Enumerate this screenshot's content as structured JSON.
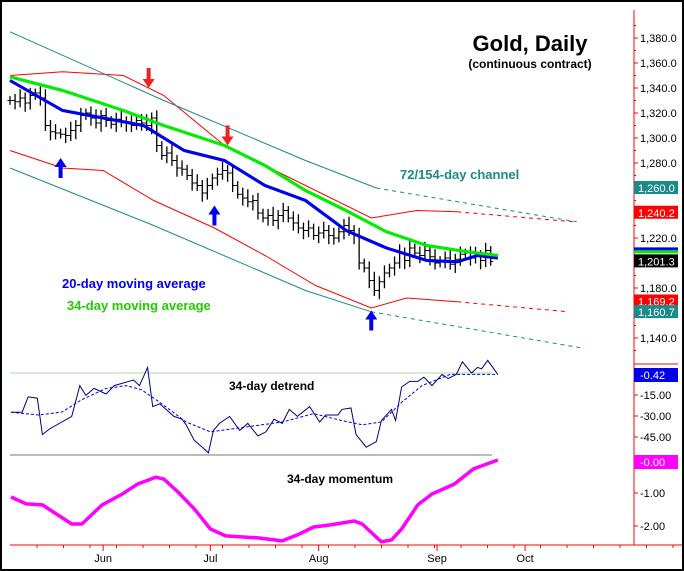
{
  "chart_data": [
    {
      "type": "bar",
      "subtype": "ohlc",
      "title": "Gold, Daily",
      "subtitle": "(continuous contract)",
      "x_unit": "trading day index",
      "ylim": [
        1120,
        1390
      ],
      "y_ticks": [
        "1,380.0",
        "1,360.0",
        "1,340.0",
        "1,320.0",
        "1,300.0",
        "1,280.0",
        "1,220.0",
        "1,180.0",
        "1,140.0"
      ],
      "y_tick_values": [
        1380,
        1360,
        1340,
        1320,
        1300,
        1280,
        1220,
        1180,
        1140
      ],
      "x_tick_labels": [
        "Jun",
        "Jul",
        "Aug",
        "Sep",
        "Oct"
      ],
      "x_tick_positions": [
        18.4,
        39.6,
        61,
        84.4,
        101.8
      ],
      "closes": [
        1330,
        1329,
        1332,
        1328,
        1334,
        1336,
        1332,
        1310,
        1305,
        1304,
        1303,
        1302,
        1306,
        1310,
        1318,
        1320,
        1316,
        1312,
        1318,
        1314,
        1311,
        1315,
        1313,
        1312,
        1310,
        1314,
        1312,
        1310,
        1316,
        1294,
        1286,
        1288,
        1282,
        1276,
        1275,
        1270,
        1264,
        1262,
        1256,
        1262,
        1268,
        1271,
        1274,
        1272,
        1262,
        1255,
        1252,
        1249,
        1250,
        1240,
        1236,
        1238,
        1234,
        1238,
        1242,
        1236,
        1232,
        1228,
        1226,
        1228,
        1222,
        1224,
        1226,
        1222,
        1220,
        1225,
        1230,
        1226,
        1222,
        1200,
        1196,
        1186,
        1178,
        1185,
        1192,
        1196,
        1200,
        1208,
        1202,
        1212,
        1208,
        1206,
        1210,
        1205,
        1200,
        1202,
        1204,
        1199,
        1203,
        1207,
        1208,
        1204,
        1206,
        1202,
        1210,
        1201.3
      ],
      "bar_half_range": 7,
      "series": [
        {
          "name": "20-day moving average",
          "color": "#0000ee",
          "points": [
            [
              0,
              1346
            ],
            [
              10.4,
              1322
            ],
            [
              18.4,
              1316
            ],
            [
              26.4,
              1310
            ],
            [
              34.4,
              1290
            ],
            [
              42.4,
              1282
            ],
            [
              50.4,
              1262
            ],
            [
              58.4,
              1250
            ],
            [
              66.4,
              1226
            ],
            [
              74.4,
              1212
            ],
            [
              82.4,
              1202
            ],
            [
              88.4,
              1201
            ],
            [
              92.4,
              1206
            ],
            [
              96.4,
              1204
            ]
          ]
        },
        {
          "name": "34-day moving average",
          "color": "#00ee00",
          "points": [
            [
              0,
              1349
            ],
            [
              10.4,
              1338
            ],
            [
              22.4,
              1322
            ],
            [
              30.4,
              1310
            ],
            [
              42.4,
              1294
            ],
            [
              50.4,
              1278
            ],
            [
              58.4,
              1258
            ],
            [
              66.4,
              1242
            ],
            [
              74.4,
              1225
            ],
            [
              82.4,
              1214
            ],
            [
              90.4,
              1209
            ],
            [
              96.4,
              1206
            ]
          ]
        },
        {
          "name": "72-day channel upper",
          "color": "#ff0000",
          "points": [
            [
              0,
              1350
            ],
            [
              10.4,
              1353
            ],
            [
              22.4,
              1350
            ],
            [
              30.4,
              1334
            ],
            [
              42.4,
              1294
            ],
            [
              58.4,
              1262
            ],
            [
              71.4,
              1236
            ],
            [
              80.4,
              1242
            ],
            [
              88.4,
              1241
            ]
          ],
          "projection": [
            [
              88.4,
              1241
            ],
            [
              111.4,
              1233
            ]
          ]
        },
        {
          "name": "72-day channel lower",
          "color": "#ff0000",
          "points": [
            [
              0,
              1290
            ],
            [
              10.4,
              1276
            ],
            [
              18.4,
              1274
            ],
            [
              28.4,
              1250
            ],
            [
              40.4,
              1228
            ],
            [
              50.4,
              1206
            ],
            [
              60.4,
              1182
            ],
            [
              71.4,
              1164
            ],
            [
              78.4,
              1172
            ],
            [
              88.4,
              1169
            ]
          ],
          "projection": [
            [
              88.4,
              1169
            ],
            [
              110.4,
              1161
            ]
          ]
        },
        {
          "name": "154-day channel upper",
          "color": "#1a8a8a",
          "points": [
            [
              0,
              1385
            ],
            [
              30.4,
              1330
            ],
            [
              58.4,
              1282
            ],
            [
              72.4,
              1260
            ]
          ],
          "projection": [
            [
              72.4,
              1260
            ],
            [
              112,
              1233
            ]
          ]
        },
        {
          "name": "154-day channel lower",
          "color": "#1a8a8a",
          "points": [
            [
              0,
              1276
            ],
            [
              28.4,
              1230
            ],
            [
              58.4,
              1178
            ],
            [
              71.4,
              1161
            ]
          ],
          "projection": [
            [
              71.4,
              1161
            ],
            [
              113,
              1132
            ]
          ]
        }
      ],
      "annotations": {
        "ma20_label": "20-day moving average",
        "ma34_label": "34-day moving average",
        "channel_label": "72/154-day channel",
        "down_arrows": [
          [
            27.4,
            1340
          ],
          [
            43,
            1294
          ]
        ],
        "up_arrows": [
          [
            10,
            1284
          ],
          [
            40.4,
            1246
          ],
          [
            71.4,
            1162
          ]
        ]
      },
      "value_boxes": [
        {
          "text": "1,260.0",
          "value": 1260,
          "color": "#1a8a8a"
        },
        {
          "text": "1,240.2",
          "value": 1240.2,
          "color": "#ff0000"
        },
        {
          "text": "1,201.3",
          "value": 1201.3,
          "color": "#000000"
        },
        {
          "text": "1,169.2",
          "value": 1169.2,
          "color": "#ff0000"
        },
        {
          "text": "1,160.7",
          "value": 1160.7,
          "color": "#1a8a8a"
        }
      ]
    },
    {
      "type": "line",
      "title": "34-day detrend",
      "ylim": [
        -58,
        10
      ],
      "y_ticks": [
        "-15.00",
        "-30.00",
        "-45.00"
      ],
      "y_tick_values": [
        -15,
        -30,
        -45
      ],
      "current_label": "-0.42",
      "current_color": "#0000ee",
      "series": [
        {
          "name": "detrend",
          "color": "#000080",
          "points": [
            [
              0.2,
              -28
            ],
            [
              2.4,
              -28
            ],
            [
              3.6,
              -17
            ],
            [
              5.4,
              -18
            ],
            [
              6.4,
              -44
            ],
            [
              7.8,
              -40
            ],
            [
              12.2,
              -31
            ],
            [
              13.8,
              -9
            ],
            [
              15,
              -16
            ],
            [
              16.6,
              -11
            ],
            [
              19,
              -15
            ],
            [
              20.6,
              -9
            ],
            [
              24.4,
              -5
            ],
            [
              25.6,
              -9
            ],
            [
              27.2,
              4
            ],
            [
              28.2,
              -24
            ],
            [
              29.6,
              -22
            ],
            [
              32.4,
              -31
            ],
            [
              34,
              -33
            ],
            [
              34.8,
              -37
            ],
            [
              36.4,
              -48
            ],
            [
              38,
              -53
            ],
            [
              39.2,
              -57
            ],
            [
              40.2,
              -41
            ],
            [
              41.4,
              -36
            ],
            [
              43.4,
              -31
            ],
            [
              45.4,
              -41
            ],
            [
              47,
              -36
            ],
            [
              49,
              -45
            ],
            [
              50.6,
              -42
            ],
            [
              52.2,
              -33
            ],
            [
              53.8,
              -36
            ],
            [
              55.2,
              -26
            ],
            [
              56.8,
              -31
            ],
            [
              59.2,
              -24
            ],
            [
              61.2,
              -35
            ],
            [
              62.4,
              -30
            ],
            [
              64.8,
              -30
            ],
            [
              65.6,
              -26
            ],
            [
              67.4,
              -25
            ],
            [
              68.4,
              -44
            ],
            [
              70.4,
              -53
            ],
            [
              72.4,
              -49
            ],
            [
              73.4,
              -34
            ],
            [
              75.4,
              -26
            ],
            [
              76.2,
              -34
            ],
            [
              77.4,
              -10
            ],
            [
              79,
              -6
            ],
            [
              80.6,
              -6
            ],
            [
              81.8,
              -3
            ],
            [
              83.4,
              -9
            ],
            [
              85.4,
              -1
            ],
            [
              86.6,
              -4
            ],
            [
              88.2,
              -1
            ],
            [
              89.4,
              8
            ],
            [
              91.2,
              0
            ],
            [
              92.4,
              4
            ],
            [
              93.2,
              3
            ],
            [
              94.4,
              9
            ],
            [
              96.4,
              -1
            ]
          ]
        },
        {
          "name": "detrend average",
          "color": "#0000ee",
          "dashed": true,
          "points": [
            [
              0.2,
              -28
            ],
            [
              5.6,
              -30
            ],
            [
              10.2,
              -28
            ],
            [
              14.2,
              -19
            ],
            [
              19,
              -11
            ],
            [
              23,
              -9
            ],
            [
              26,
              -12
            ],
            [
              30,
              -22
            ],
            [
              34.8,
              -35
            ],
            [
              39.6,
              -42
            ],
            [
              45.8,
              -39
            ],
            [
              53.8,
              -35
            ],
            [
              60,
              -29
            ],
            [
              65.6,
              -34
            ],
            [
              69.6,
              -37
            ],
            [
              73.4,
              -35
            ],
            [
              77.4,
              -21
            ],
            [
              81.4,
              -9
            ],
            [
              87,
              -1
            ],
            [
              96.4,
              -1
            ]
          ]
        }
      ]
    },
    {
      "type": "line",
      "title": "34-day momentum",
      "ylim": [
        -2.6,
        0.2
      ],
      "y_ticks": [
        "-1.00",
        "-2.00"
      ],
      "y_tick_values": [
        -1,
        -2
      ],
      "current_label": "-0.00",
      "current_color": "#ff00ff",
      "series": [
        {
          "name": "momentum",
          "color": "#ff00ff",
          "points": [
            [
              0.2,
              -1.12
            ],
            [
              3.2,
              -1.33
            ],
            [
              6.4,
              -1.36
            ],
            [
              8.6,
              -1.58
            ],
            [
              12.2,
              -1.94
            ],
            [
              14.2,
              -1.94
            ],
            [
              18.2,
              -1.36
            ],
            [
              22.2,
              -1.03
            ],
            [
              25.2,
              -0.73
            ],
            [
              28.8,
              -0.52
            ],
            [
              30.4,
              -0.58
            ],
            [
              33.2,
              -0.97
            ],
            [
              36.4,
              -1.48
            ],
            [
              39.6,
              -2.09
            ],
            [
              42.6,
              -2.3
            ],
            [
              49,
              -2.36
            ],
            [
              53.8,
              -2.45
            ],
            [
              56.8,
              -2.27
            ],
            [
              60,
              -2.03
            ],
            [
              63.2,
              -1.97
            ],
            [
              68,
              -1.85
            ],
            [
              69.6,
              -1.94
            ],
            [
              73.4,
              -2.48
            ],
            [
              75.4,
              -2.42
            ],
            [
              77.4,
              -2.09
            ],
            [
              80.6,
              -1.36
            ],
            [
              83.4,
              -1.03
            ],
            [
              87.8,
              -0.73
            ],
            [
              91.6,
              -0.27
            ],
            [
              96.4,
              0
            ]
          ]
        }
      ]
    }
  ]
}
